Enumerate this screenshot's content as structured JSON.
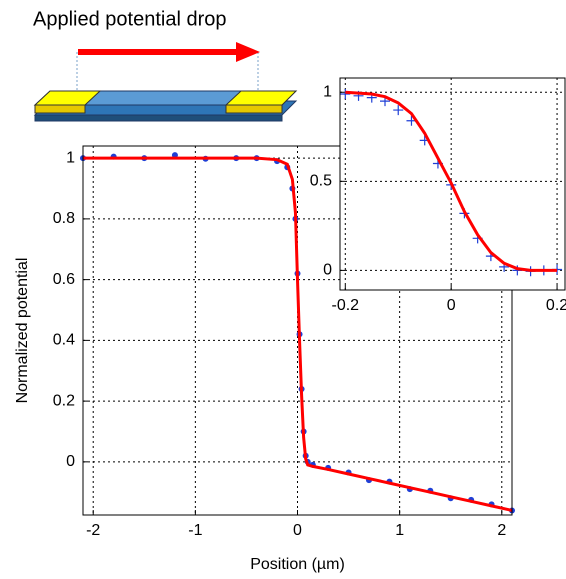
{
  "annotation": "Applied potential drop",
  "chart_data": [
    {
      "type": "scatter-line",
      "xlabel": "Position (µm)",
      "ylabel": "Normalized potential",
      "xlim": [
        -2.1,
        2.1
      ],
      "ylim": [
        -0.175,
        1.04
      ],
      "xticks": [
        -2,
        -1,
        0,
        1,
        2
      ],
      "yticks": [
        0,
        0.2,
        0.4,
        0.6,
        0.8,
        1
      ],
      "grid": true,
      "x": [
        -2.1,
        -1.8,
        -1.5,
        -1.2,
        -0.9,
        -0.6,
        -0.4,
        -0.2,
        -0.1,
        -0.05,
        -0.02,
        0,
        0.02,
        0.04,
        0.06,
        0.08,
        0.1,
        0.15,
        0.3,
        0.5,
        0.7,
        0.9,
        1.1,
        1.3,
        1.5,
        1.7,
        1.9,
        2.1
      ],
      "series": [
        {
          "color": "#1f3fd6",
          "style": "dot",
          "values": [
            1.0,
            1.005,
            1.0,
            1.01,
            0.998,
            1.0,
            1.0,
            0.99,
            0.97,
            0.9,
            0.8,
            0.62,
            0.42,
            0.24,
            0.1,
            0.02,
            0.0,
            -0.01,
            -0.02,
            -0.035,
            -0.06,
            -0.065,
            -0.09,
            -0.095,
            -0.12,
            -0.125,
            -0.14,
            -0.16
          ]
        },
        {
          "color": "#ff0000",
          "style": "line",
          "values": [
            1,
            1,
            1,
            1,
            1,
            1,
            1,
            0.995,
            0.98,
            0.93,
            0.82,
            0.6,
            0.4,
            0.22,
            0.08,
            0.01,
            -0.01,
            -0.015,
            -0.025,
            -0.04,
            -0.055,
            -0.07,
            -0.085,
            -0.1,
            -0.115,
            -0.13,
            -0.145,
            -0.16
          ]
        }
      ]
    },
    {
      "type": "scatter-line",
      "xlim": [
        -0.21,
        0.215
      ],
      "ylim": [
        -0.11,
        1.08
      ],
      "xticks": [
        -0.2,
        0,
        0.2
      ],
      "yticks": [
        0,
        0.5,
        1
      ],
      "grid": true,
      "x": [
        -0.2,
        -0.175,
        -0.15,
        -0.125,
        -0.1,
        -0.075,
        -0.05,
        -0.025,
        0,
        0.025,
        0.05,
        0.075,
        0.1,
        0.125,
        0.15,
        0.175,
        0.2
      ],
      "series": [
        {
          "color": "#1f3fd6",
          "style": "plus",
          "values": [
            0.99,
            0.98,
            0.97,
            0.95,
            0.9,
            0.84,
            0.73,
            0.6,
            0.48,
            0.32,
            0.18,
            0.08,
            0.02,
            0,
            -0.005,
            0,
            0.005
          ]
        },
        {
          "color": "#ff0000",
          "style": "line",
          "values": [
            1,
            0.995,
            0.99,
            0.975,
            0.94,
            0.88,
            0.77,
            0.63,
            0.49,
            0.33,
            0.2,
            0.1,
            0.04,
            0.01,
            0,
            0,
            0
          ]
        }
      ]
    }
  ]
}
